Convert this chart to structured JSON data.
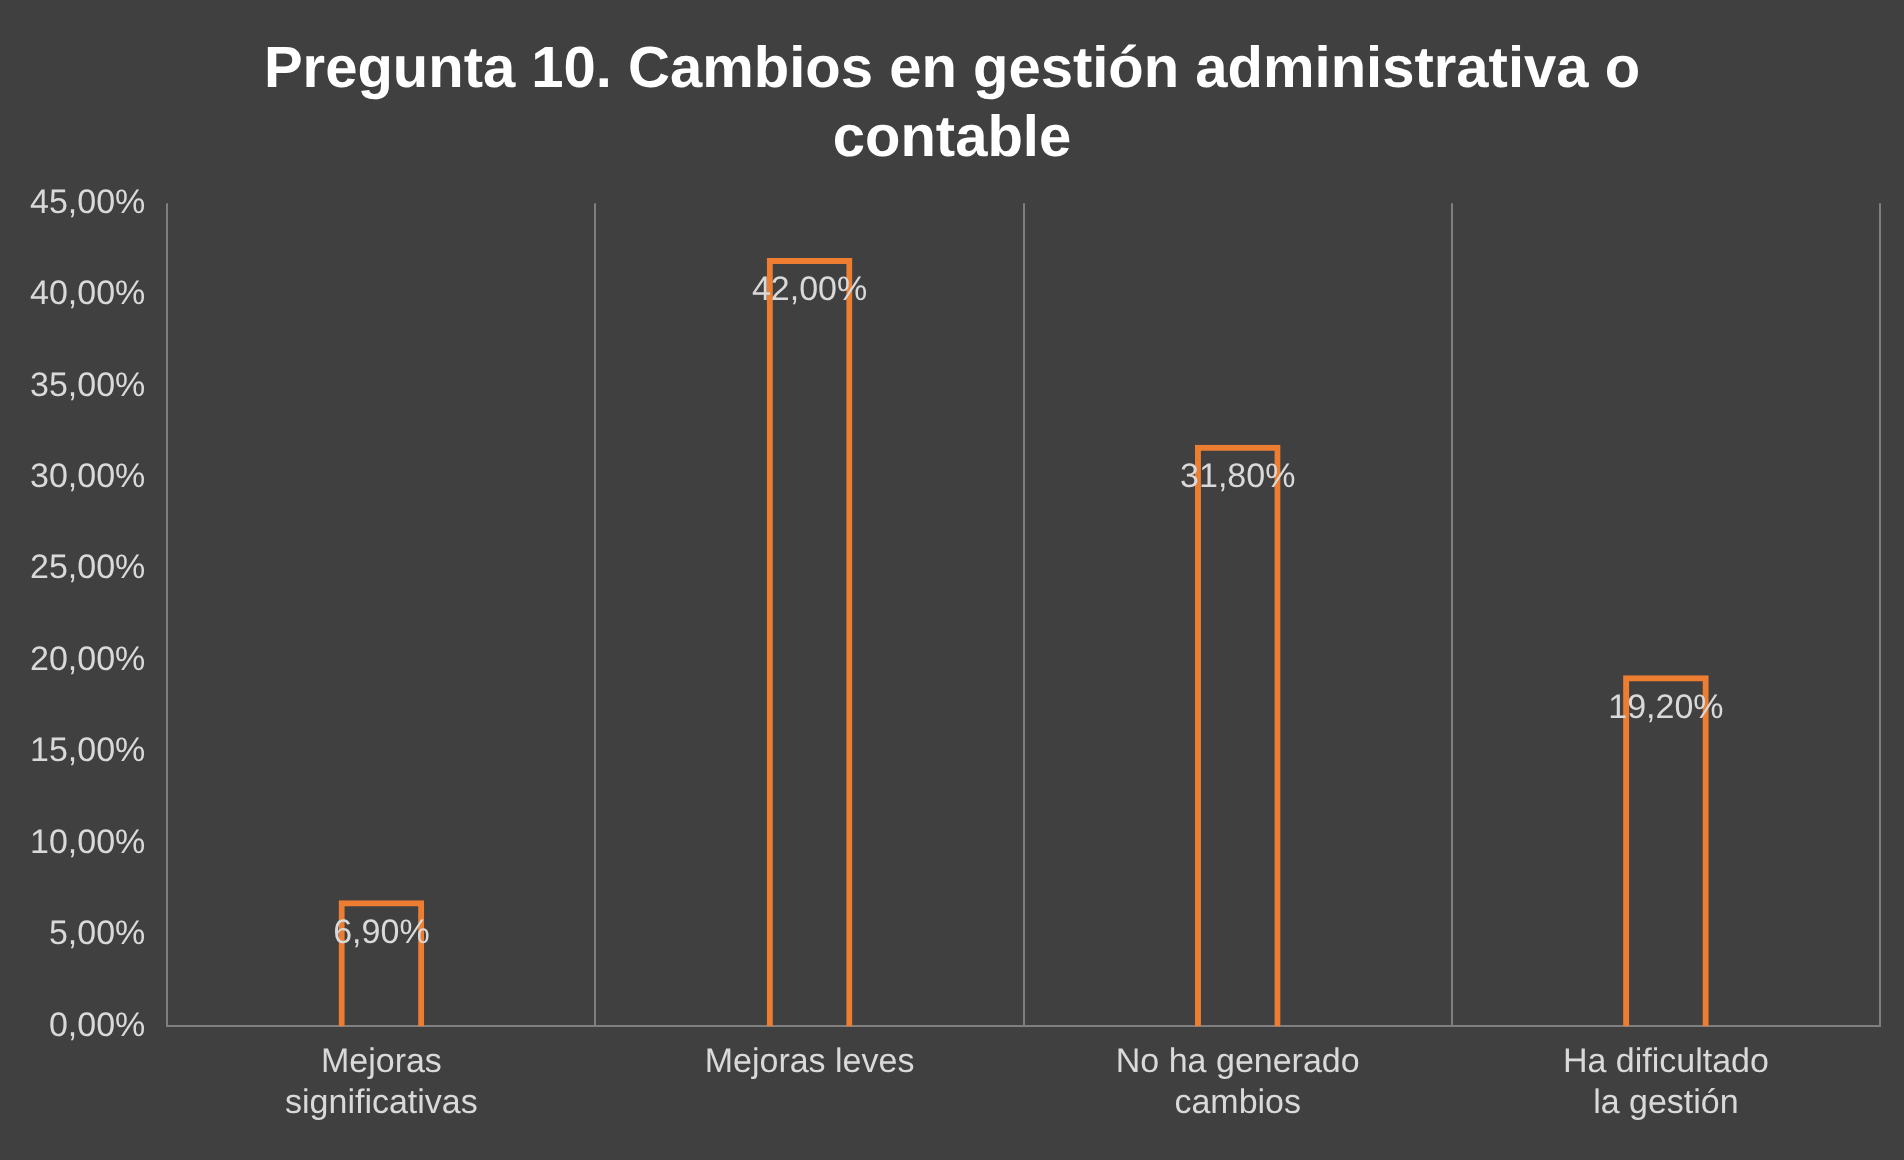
{
  "chart_data": {
    "type": "bar",
    "title": "Pregunta 10. Cambios en gestión administrativa o contable",
    "categories": [
      "Mejoras significativas",
      "Mejoras leves",
      "No ha generado cambios",
      "Ha dificultado la gestión"
    ],
    "values": [
      6.9,
      42.0,
      31.8,
      19.2
    ],
    "value_labels": [
      "6,90%",
      "42,00%",
      "31,80%",
      "19,20%"
    ],
    "color": "#ed7d31",
    "ylim": [
      0,
      45
    ],
    "yticks": [
      {
        "value": 0,
        "label": "0,00%"
      },
      {
        "value": 5,
        "label": "5,00%"
      },
      {
        "value": 10,
        "label": "10,00%"
      },
      {
        "value": 15,
        "label": "15,00%"
      },
      {
        "value": 20,
        "label": "20,00%"
      },
      {
        "value": 25,
        "label": "25,00%"
      },
      {
        "value": 30,
        "label": "30,00%"
      },
      {
        "value": 35,
        "label": "35,00%"
      },
      {
        "value": 40,
        "label": "40,00%"
      },
      {
        "value": 45,
        "label": "45,00%"
      }
    ],
    "grid": "x"
  }
}
